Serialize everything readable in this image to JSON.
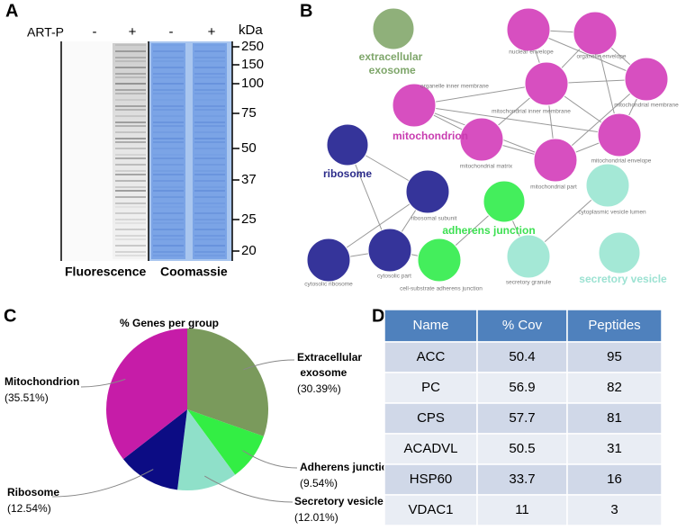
{
  "panel_a": {
    "letter": "A",
    "treatment": "ART-P",
    "lanes": [
      "-",
      "+",
      "-",
      "+"
    ],
    "unit": "kDa",
    "markers": [
      250,
      150,
      100,
      75,
      50,
      37,
      25,
      20
    ],
    "stains": [
      "Fluorescence",
      "Coomassie"
    ]
  },
  "panel_b": {
    "letter": "B",
    "groups": [
      "extracellular exosome",
      "mitochondrion",
      "ribosome",
      "adherens junction",
      "secretory vesicle"
    ],
    "nodes": [
      {
        "label": "nuclear envelope"
      },
      {
        "label": "organelle envelope"
      },
      {
        "label": "organelle inner membrane"
      },
      {
        "label": "mitochondrial inner membrane"
      },
      {
        "label": "mitochondrial membrane"
      },
      {
        "label": "mitochondrial matrix"
      },
      {
        "label": "mitochondrial envelope"
      },
      {
        "label": "mitochondrial part"
      },
      {
        "label": "ribosomal subunit"
      },
      {
        "label": "cytosolic ribosome"
      },
      {
        "label": "cytosolic part"
      },
      {
        "label": "cell-substrate adherens junction"
      },
      {
        "label": "cytoplasmic vesicle lumen"
      },
      {
        "label": "secretory granule"
      }
    ]
  },
  "panel_c": {
    "letter": "C"
  },
  "chart_data": {
    "type": "pie",
    "title": "% Genes per group",
    "categories": [
      "Extracellular exosome",
      "Adherens junction",
      "Secretory vesicle",
      "Ribosome",
      "Mitochondrion"
    ],
    "values": [
      30.39,
      9.54,
      12.01,
      12.54,
      35.51
    ],
    "value_labels": [
      "(30.39%)",
      "(9.54%)",
      "(12.01%)",
      "(12.54%)",
      "(35.51%)"
    ],
    "colors": [
      "#7a9a5c",
      "#33ee44",
      "#8fe0c9",
      "#0c0c84",
      "#c61ca8"
    ]
  },
  "panel_d": {
    "letter": "D",
    "table": {
      "header": [
        "Name",
        "% Cov",
        "Peptides"
      ],
      "rows": [
        [
          "ACC",
          50.4,
          95
        ],
        [
          "PC",
          56.9,
          82
        ],
        [
          "CPS",
          57.7,
          81
        ],
        [
          "ACADVL",
          50.5,
          31
        ],
        [
          "HSP60",
          33.7,
          16
        ],
        [
          "VDAC1",
          11,
          3
        ]
      ]
    }
  }
}
